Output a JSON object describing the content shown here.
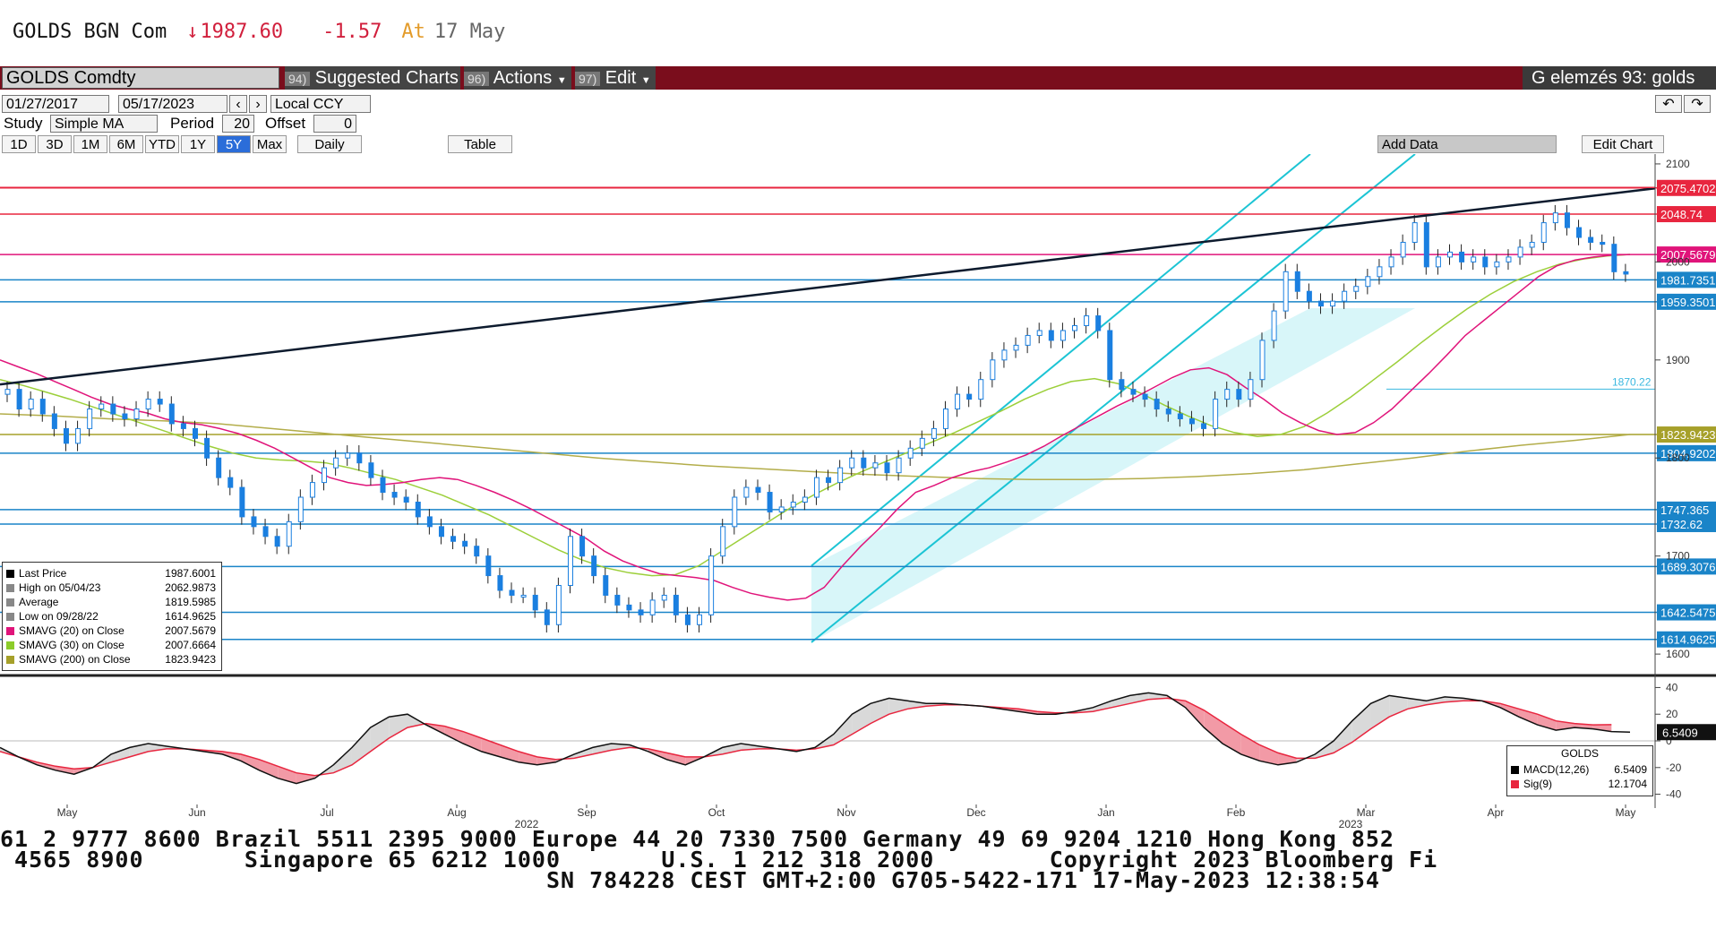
{
  "header": {
    "ticker": "GOLDS BGN Com",
    "arrow": "↓",
    "price": "1987.60",
    "change": "-1.57",
    "at_label": "At",
    "at_date": "17 May"
  },
  "toolbar": {
    "security": "GOLDS Comdty",
    "suggested_num": "94)",
    "suggested": "Suggested Charts",
    "actions_num": "96)",
    "actions": "Actions",
    "edit_num": "97)",
    "edit": "Edit",
    "title_right": "G elemzés 93: golds"
  },
  "controls": {
    "date_from": "01/27/2017",
    "date_to": "05/17/2023",
    "currency": "Local CCY",
    "study_label": "Study",
    "study": "Simple MA",
    "period_label": "Period",
    "period": "20",
    "offset_label": "Offset",
    "offset": "0",
    "ranges": [
      "1D",
      "3D",
      "1M",
      "6M",
      "YTD",
      "1Y",
      "5Y",
      "Max"
    ],
    "selected_range": "5Y",
    "frequency": "Daily",
    "table": "Table",
    "add_data": "Add Data",
    "edit_chart": "Edit Chart"
  },
  "chart_data": {
    "type": "candlestick",
    "title": "",
    "y_ticks": [
      1600,
      1700,
      1800,
      1900,
      2000,
      2100
    ],
    "x_labels": [
      "May",
      "Jun",
      "Jul",
      "Aug",
      "Sep",
      "Oct",
      "Nov",
      "Dec",
      "Jan",
      "Feb",
      "Mar",
      "Apr",
      "May"
    ],
    "year_labels": [
      "2022",
      "2023"
    ],
    "closes": [
      1870,
      1850,
      1860,
      1845,
      1830,
      1815,
      1830,
      1850,
      1855,
      1845,
      1840,
      1850,
      1860,
      1855,
      1835,
      1830,
      1820,
      1800,
      1780,
      1770,
      1740,
      1730,
      1720,
      1710,
      1735,
      1760,
      1775,
      1790,
      1800,
      1805,
      1795,
      1780,
      1765,
      1760,
      1755,
      1740,
      1730,
      1720,
      1715,
      1710,
      1700,
      1680,
      1665,
      1660,
      1660,
      1645,
      1630,
      1670,
      1720,
      1700,
      1680,
      1660,
      1650,
      1645,
      1640,
      1655,
      1660,
      1640,
      1630,
      1640,
      1700,
      1730,
      1760,
      1770,
      1765,
      1745,
      1750,
      1755,
      1760,
      1780,
      1775,
      1790,
      1800,
      1790,
      1795,
      1785,
      1800,
      1810,
      1820,
      1830,
      1850,
      1865,
      1860,
      1880,
      1900,
      1910,
      1915,
      1925,
      1930,
      1920,
      1930,
      1935,
      1945,
      1930,
      1880,
      1870,
      1865,
      1860,
      1850,
      1845,
      1840,
      1835,
      1830,
      1860,
      1870,
      1860,
      1880,
      1920,
      1950,
      1990,
      1970,
      1960,
      1955,
      1960,
      1970,
      1975,
      1985,
      1995,
      2005,
      2020,
      2040,
      1995,
      2005,
      2010,
      2000,
      2005,
      1995,
      2000,
      2005,
      2015,
      2020,
      2040,
      2050,
      2035,
      2025,
      2020,
      2018,
      1990,
      1987.6
    ],
    "sma20": [
      1900,
      1893,
      1886,
      1878,
      1870,
      1862,
      1855,
      1850,
      1846,
      1840,
      1836,
      1834,
      1830,
      1825,
      1818,
      1810,
      1800,
      1790,
      1780,
      1775,
      1772,
      1773,
      1775,
      1778,
      1780,
      1778,
      1772,
      1765,
      1757,
      1748,
      1738,
      1728,
      1718,
      1705,
      1695,
      1688,
      1682,
      1680,
      1678,
      1675,
      1668,
      1662,
      1658,
      1655,
      1657,
      1668,
      1690,
      1710,
      1728,
      1748,
      1765,
      1772,
      1780,
      1786,
      1790,
      1796,
      1803,
      1812,
      1823,
      1833,
      1843,
      1853,
      1862,
      1872,
      1882,
      1890,
      1892,
      1885,
      1872,
      1860,
      1846,
      1836,
      1828,
      1824,
      1826,
      1836,
      1850,
      1868,
      1886,
      1905,
      1925,
      1940,
      1955,
      1970,
      1985,
      1996,
      2002,
      2005,
      2007,
      2007.5679
    ],
    "sma30": [
      1880,
      1874,
      1867,
      1860,
      1852,
      1844,
      1836,
      1828,
      1820,
      1812,
      1805,
      1800,
      1798,
      1797,
      1795,
      1790,
      1784,
      1778,
      1770,
      1762,
      1752,
      1742,
      1730,
      1718,
      1706,
      1696,
      1688,
      1683,
      1680,
      1681,
      1690,
      1705,
      1720,
      1735,
      1750,
      1763,
      1775,
      1786,
      1796,
      1806,
      1816,
      1826,
      1837,
      1848,
      1860,
      1870,
      1878,
      1881,
      1876,
      1866,
      1854,
      1843,
      1833,
      1826,
      1822,
      1824,
      1832,
      1846,
      1862,
      1880,
      1898,
      1917,
      1935,
      1952,
      1967,
      1980,
      1990,
      1998,
      2003,
      2006,
      2007.6664
    ],
    "sma200": [
      1845,
      1843,
      1840,
      1838,
      1835,
      1830,
      1825,
      1820,
      1815,
      1810,
      1805,
      1800,
      1796,
      1792,
      1789,
      1786,
      1783,
      1781,
      1779,
      1778,
      1778,
      1779,
      1781,
      1784,
      1788,
      1794,
      1800,
      1807,
      1813,
      1818,
      1823.9423
    ],
    "horizontal_levels": [
      {
        "label": "2075.4702",
        "value": 2075.4702,
        "color": "#e8263f",
        "style": "box"
      },
      {
        "label": "2048.74",
        "value": 2048.74,
        "color": "#e8263f",
        "style": "box"
      },
      {
        "label": "2007.5679",
        "value": 2007.5679,
        "color": "#e0147a",
        "style": "box"
      },
      {
        "label": "1981.7351",
        "value": 1981.7351,
        "color": "#1a84c8",
        "style": "box"
      },
      {
        "label": "1959.3501",
        "value": 1959.3501,
        "color": "#1a84c8",
        "style": "box"
      },
      {
        "label": "1870.22",
        "value": 1870.22,
        "color": "#3ab8e0",
        "style": "text"
      },
      {
        "label": "1823.9423",
        "value": 1823.9423,
        "color": "#a6a02a",
        "style": "box"
      },
      {
        "label": "1804.9202",
        "value": 1804.9202,
        "color": "#1a84c8",
        "style": "box"
      },
      {
        "label": "1747.365",
        "value": 1747.365,
        "color": "#1a84c8",
        "style": "box"
      },
      {
        "label": "1732.62",
        "value": 1732.62,
        "color": "#1a84c8",
        "style": "box"
      },
      {
        "label": "1689.3076",
        "value": 1689.3076,
        "color": "#1a84c8",
        "style": "box"
      },
      {
        "label": "1642.5475",
        "value": 1642.5475,
        "color": "#1a84c8",
        "style": "box"
      },
      {
        "label": "1614.9625",
        "value": 1614.9625,
        "color": "#1a84c8",
        "style": "box"
      }
    ],
    "legend": [
      {
        "label": "Last Price",
        "value": "1987.6001",
        "color": "#000000"
      },
      {
        "label": "High on 05/04/23",
        "value": "2062.9873",
        "color": "#888888"
      },
      {
        "label": "Average",
        "value": "1819.5985",
        "color": "#888888"
      },
      {
        "label": "Low on 09/28/22",
        "value": "1614.9625",
        "color": "#888888"
      },
      {
        "label": "SMAVG (20)  on Close",
        "value": "2007.5679",
        "color": "#e0147a"
      },
      {
        "label": "SMAVG (30)  on Close",
        "value": "2007.6664",
        "color": "#8ccc2a"
      },
      {
        "label": "SMAVG (200)  on Close",
        "value": "1823.9423",
        "color": "#a6a02a"
      }
    ],
    "macd": {
      "y_ticks": [
        40,
        20,
        0,
        -20,
        -40
      ],
      "macd_values": [
        -5,
        -12,
        -18,
        -22,
        -25,
        -20,
        -10,
        -5,
        -2,
        -4,
        -6,
        -8,
        -10,
        -15,
        -22,
        -28,
        -32,
        -28,
        -18,
        -5,
        10,
        18,
        20,
        12,
        5,
        -2,
        -8,
        -12,
        -16,
        -18,
        -16,
        -10,
        -5,
        -2,
        -3,
        -8,
        -14,
        -18,
        -12,
        -5,
        -2,
        -4,
        -6,
        -8,
        -5,
        5,
        20,
        28,
        32,
        30,
        28,
        28,
        27,
        26,
        24,
        22,
        20,
        20,
        22,
        25,
        30,
        34,
        36,
        34,
        25,
        10,
        -2,
        -10,
        -15,
        -18,
        -16,
        -10,
        0,
        15,
        28,
        34,
        32,
        30,
        33,
        32,
        30,
        25,
        18,
        12,
        8,
        10,
        9,
        7,
        6.5409
      ],
      "signal_values": [
        -8,
        -12,
        -16,
        -19,
        -21,
        -20,
        -16,
        -12,
        -8,
        -6,
        -6,
        -7,
        -8,
        -10,
        -14,
        -19,
        -24,
        -26,
        -24,
        -18,
        -8,
        2,
        10,
        13,
        11,
        7,
        2,
        -3,
        -8,
        -12,
        -14,
        -13,
        -10,
        -7,
        -5,
        -6,
        -9,
        -12,
        -12,
        -10,
        -7,
        -6,
        -6,
        -7,
        -6,
        -3,
        5,
        13,
        20,
        24,
        26,
        27,
        27,
        26,
        25,
        24,
        22,
        21,
        21,
        22,
        25,
        28,
        31,
        32,
        30,
        23,
        14,
        5,
        -3,
        -9,
        -13,
        -13,
        -9,
        -1,
        9,
        18,
        24,
        27,
        29,
        30,
        30,
        28,
        24,
        20,
        15,
        13,
        12,
        12.1704
      ],
      "labels": [
        {
          "label": "MACD(12,26)",
          "value": "6.5409",
          "color": "#000000"
        },
        {
          "label": "Sig(9)",
          "value": "12.1704",
          "color": "#e8263f"
        }
      ],
      "legend_title": "GOLDS",
      "box_value": "6.5409"
    }
  },
  "footer": {
    "line1": "61 2 9777 8600 Brazil 5511 2395 9000 Europe 44 20 7330 7500 Germany 49 69 9204 1210 Hong Kong 852",
    "line2": " 4565 8900       Singapore 65 6212 1000       U.S. 1 212 318 2000        Copyright 2023 Bloomberg Fi",
    "line3": "                                      SN 784228 CEST GMT+2:00 G705-5422-171 17-May-2023 12:38:54"
  }
}
